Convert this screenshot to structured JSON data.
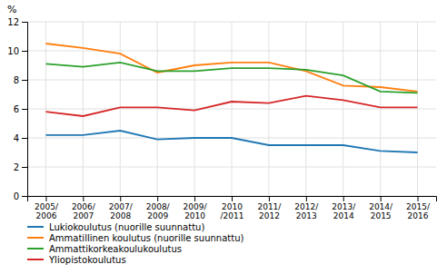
{
  "chart_data": {
    "type": "line",
    "y_label": "%",
    "categories": [
      "2005/\n2006",
      "2006/\n2007",
      "2007/\n2008",
      "2008/\n2009",
      "2009/\n2010",
      "2010\n/2011",
      "2011/\n2012",
      "2012/\n2013",
      "2013/\n2014",
      "2014/\n2015",
      "2015/\n2016"
    ],
    "series": [
      {
        "name": "Lukiokoulutus (nuorille suunnattu)",
        "values": [
          4.2,
          4.2,
          4.5,
          3.9,
          4.0,
          4.0,
          3.5,
          3.5,
          3.5,
          3.1,
          3.0
        ]
      },
      {
        "name": "Ammatillinen koulutus  (nuorille suunnattu)",
        "values": [
          10.5,
          10.2,
          9.8,
          8.5,
          9.0,
          9.2,
          9.2,
          8.6,
          7.6,
          7.5,
          7.2
        ]
      },
      {
        "name": "Ammattikorkeakoulukoulutus",
        "values": [
          9.1,
          8.9,
          9.2,
          8.6,
          8.6,
          8.8,
          8.8,
          8.7,
          8.3,
          7.2,
          7.1
        ]
      },
      {
        "name": "Yliopistokoulutus",
        "values": [
          5.8,
          5.5,
          6.1,
          6.1,
          5.9,
          6.5,
          6.4,
          6.9,
          6.6,
          6.1,
          6.1
        ]
      }
    ],
    "ylim": [
      0,
      12
    ],
    "yticks": [
      0,
      2,
      4,
      6,
      8,
      10,
      12
    ],
    "grid": true,
    "legend": "bottom"
  }
}
